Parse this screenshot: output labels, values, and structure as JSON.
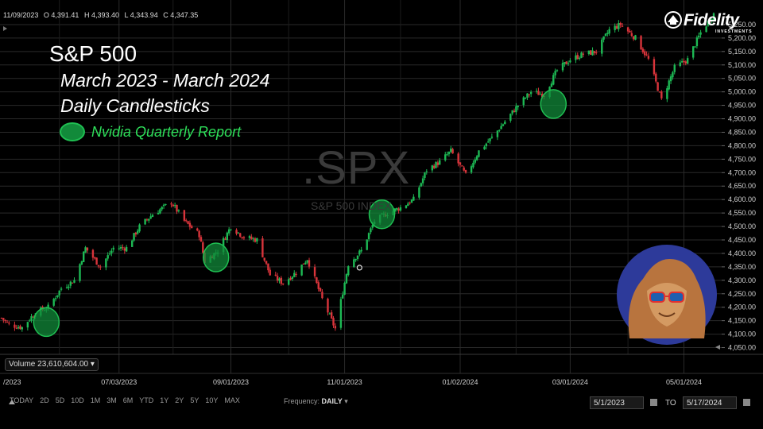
{
  "header": {
    "date": "11/09/2023",
    "open": "O 4,391.41",
    "high": "H 4,393.40",
    "low": "L 4,343.94",
    "close": "C 4,347.35"
  },
  "brand": {
    "name": "Fidelity",
    "sub": "INVESTMENTS"
  },
  "overlay": {
    "title": "S&P 500",
    "subtitle1": "March 2023 - March 2024",
    "subtitle2": "Daily Candlesticks",
    "legend": "Nvidia Quarterly Report"
  },
  "watermark": {
    "symbol": ".SPX",
    "name": "S&P 500 INDEX"
  },
  "volume_label": "Volume 23,610,604.00",
  "toolbar": {
    "ranges": [
      "TODAY",
      "2D",
      "5D",
      "10D",
      "1M",
      "3M",
      "6M",
      "YTD",
      "1Y",
      "2Y",
      "5Y",
      "10Y",
      "MAX"
    ],
    "frequency_label": "Frequency:",
    "frequency_value": "DAILY",
    "from_date": "5/1/2023",
    "to_label": "TO",
    "to_date": "5/17/2024"
  },
  "colors": {
    "up": "#1db954",
    "down": "#d9343b",
    "grid": "#2a2a2a",
    "report_fill": "#128a3a",
    "report_stroke": "#1fbf52"
  },
  "chart_data": {
    "type": "candlestick",
    "x_axis": {
      "tick_labels": [
        "/2023",
        "07/03/2023",
        "09/01/2023",
        "11/01/2023",
        "01/02/2024",
        "03/01/2024",
        "05/01/2024"
      ],
      "range": [
        "2023-05-01",
        "2024-05-17"
      ]
    },
    "y_axis": {
      "range": [
        4025,
        5300
      ],
      "tick_labels": [
        "4,050.00",
        "4,100.00",
        "4,150.00",
        "4,200.00",
        "4,250.00",
        "4,300.00",
        "4,350.00",
        "4,400.00",
        "4,450.00",
        "4,500.00",
        "4,550.00",
        "4,600.00",
        "4,650.00",
        "4,700.00",
        "4,750.00",
        "4,800.00",
        "4,850.00",
        "4,900.00",
        "4,950.00",
        "5,000.00",
        "5,050.00",
        "5,100.00",
        "5,150.00",
        "5,200.00",
        "5,250.00"
      ]
    },
    "grid": true,
    "close_path": [
      [
        "2023-05-01",
        4160
      ],
      [
        "2023-05-05",
        4135
      ],
      [
        "2023-05-12",
        4125
      ],
      [
        "2023-05-19",
        4180
      ],
      [
        "2023-05-26",
        4200
      ],
      [
        "2023-06-02",
        4270
      ],
      [
        "2023-06-09",
        4300
      ],
      [
        "2023-06-15",
        4420
      ],
      [
        "2023-06-23",
        4350
      ],
      [
        "2023-06-30",
        4420
      ],
      [
        "2023-07-07",
        4420
      ],
      [
        "2023-07-14",
        4500
      ],
      [
        "2023-07-21",
        4545
      ],
      [
        "2023-07-31",
        4590
      ],
      [
        "2023-08-07",
        4520
      ],
      [
        "2023-08-15",
        4470
      ],
      [
        "2023-08-18",
        4370
      ],
      [
        "2023-08-25",
        4410
      ],
      [
        "2023-09-01",
        4500
      ],
      [
        "2023-09-08",
        4460
      ],
      [
        "2023-09-15",
        4450
      ],
      [
        "2023-09-22",
        4320
      ],
      [
        "2023-09-29",
        4290
      ],
      [
        "2023-10-06",
        4330
      ],
      [
        "2023-10-12",
        4380
      ],
      [
        "2023-10-20",
        4230
      ],
      [
        "2023-10-27",
        4120
      ],
      [
        "2023-11-03",
        4360
      ],
      [
        "2023-11-10",
        4410
      ],
      [
        "2023-11-17",
        4520
      ],
      [
        "2023-11-24",
        4550
      ],
      [
        "2023-12-01",
        4570
      ],
      [
        "2023-12-08",
        4600
      ],
      [
        "2023-12-15",
        4710
      ],
      [
        "2023-12-22",
        4740
      ],
      [
        "2023-12-28",
        4780
      ],
      [
        "2024-01-05",
        4690
      ],
      [
        "2024-01-12",
        4780
      ],
      [
        "2024-01-19",
        4830
      ],
      [
        "2024-01-26",
        4890
      ],
      [
        "2024-02-02",
        4950
      ],
      [
        "2024-02-09",
        5000
      ],
      [
        "2024-02-16",
        4990
      ],
      [
        "2024-02-23",
        5080
      ],
      [
        "2024-03-01",
        5120
      ],
      [
        "2024-03-08",
        5140
      ],
      [
        "2024-03-15",
        5150
      ],
      [
        "2024-03-22",
        5230
      ],
      [
        "2024-03-28",
        5250
      ],
      [
        "2024-04-05",
        5200
      ],
      [
        "2024-04-12",
        5120
      ],
      [
        "2024-04-19",
        4970
      ],
      [
        "2024-04-26",
        5090
      ],
      [
        "2024-05-03",
        5120
      ],
      [
        "2024-05-10",
        5220
      ],
      [
        "2024-05-17",
        5290
      ]
    ],
    "annotations": [
      {
        "label": "Nvidia Quarterly Report",
        "date": "2023-05-25",
        "value": 4145
      },
      {
        "label": "Nvidia Quarterly Report",
        "date": "2023-08-24",
        "value": 4385
      },
      {
        "label": "Nvidia Quarterly Report",
        "date": "2023-11-21",
        "value": 4545
      },
      {
        "label": "Nvidia Quarterly Report",
        "date": "2024-02-21",
        "value": 4955
      }
    ],
    "marker": {
      "date": "2023-11-09",
      "value": 4347
    }
  }
}
